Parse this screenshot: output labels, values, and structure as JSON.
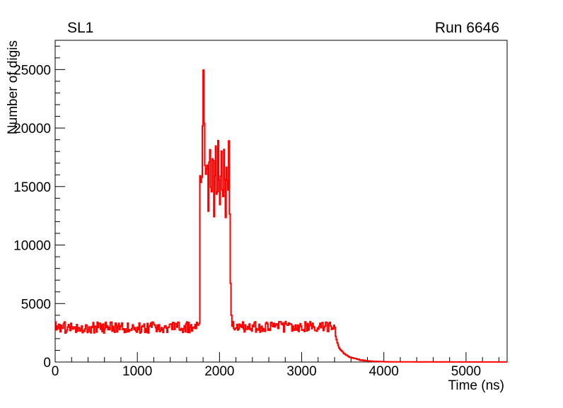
{
  "canvas": {
    "background": "#ffffff",
    "frame_color": "#000000"
  },
  "chart_data": {
    "type": "line",
    "title": "SL1",
    "corner_label": "Run 6646",
    "xlabel": "Time (ns)",
    "ylabel": "Number of digis",
    "xlim": [
      0,
      5500
    ],
    "ylim": [
      0,
      27500
    ],
    "grid": false,
    "legend": null,
    "line_color": "#ff0000",
    "line_width": 2,
    "x_major_ticks": [
      0,
      1000,
      2000,
      3000,
      4000,
      5000
    ],
    "x_tick_labels": [
      "0",
      "1000",
      "2000",
      "3000",
      "4000",
      "5000"
    ],
    "x_major_step": 1000,
    "x_minor_step": 200,
    "y_major_ticks": [
      0,
      5000,
      10000,
      15000,
      20000,
      25000
    ],
    "y_tick_labels": [
      "0",
      "5000",
      "10000",
      "15000",
      "20000",
      "25000"
    ],
    "y_major_step": 5000,
    "y_minor_step": 1000,
    "bin_width_ns": 10,
    "noise_seed": 6646,
    "segments": [
      {
        "kind": "noise",
        "t0": 0,
        "t1": 1750,
        "mean": 2950,
        "amplitude": 480
      },
      {
        "kind": "anchors",
        "jitter": 350,
        "points": [
          [
            1750,
            3400
          ],
          [
            1752,
            8000
          ],
          [
            1756,
            12600
          ],
          [
            1762,
            17600
          ],
          [
            1768,
            14000
          ],
          [
            1775,
            19000
          ],
          [
            1782,
            14800
          ],
          [
            1790,
            20500
          ],
          [
            1796,
            23300
          ],
          [
            1803,
            26400
          ],
          [
            1808,
            19000
          ],
          [
            1814,
            23600
          ],
          [
            1820,
            16800
          ],
          [
            1826,
            20300
          ],
          [
            1833,
            12600
          ],
          [
            1840,
            16800
          ],
          [
            1846,
            12900
          ],
          [
            1853,
            19700
          ],
          [
            1860,
            13100
          ],
          [
            1867,
            19900
          ],
          [
            1874,
            12700
          ],
          [
            1881,
            18700
          ],
          [
            1888,
            13600
          ],
          [
            1895,
            19400
          ],
          [
            1902,
            12400
          ],
          [
            1909,
            17700
          ],
          [
            1916,
            13900
          ],
          [
            1923,
            19900
          ],
          [
            1930,
            12500
          ],
          [
            1937,
            18200
          ],
          [
            1944,
            13000
          ],
          [
            1951,
            19000
          ],
          [
            1958,
            12900
          ],
          [
            1965,
            17200
          ],
          [
            1972,
            13700
          ],
          [
            1979,
            19800
          ],
          [
            1986,
            12400
          ],
          [
            1993,
            18500
          ],
          [
            2000,
            13300
          ],
          [
            2007,
            17900
          ],
          [
            2014,
            12700
          ],
          [
            2021,
            19200
          ],
          [
            2028,
            14000
          ],
          [
            2035,
            16600
          ],
          [
            2042,
            12900
          ],
          [
            2049,
            18800
          ],
          [
            2056,
            13400
          ],
          [
            2063,
            17500
          ],
          [
            2070,
            12600
          ],
          [
            2077,
            18900
          ],
          [
            2084,
            13800
          ],
          [
            2091,
            16200
          ],
          [
            2098,
            12900
          ],
          [
            2108,
            20700
          ],
          [
            2116,
            13800
          ],
          [
            2122,
            12100
          ],
          [
            2128,
            7800
          ],
          [
            2136,
            4300
          ],
          [
            2148,
            3500
          ]
        ]
      },
      {
        "kind": "noise",
        "t0": 2150,
        "t1": 3400,
        "mean": 3000,
        "amplitude": 460
      },
      {
        "kind": "anchors",
        "jitter": 40,
        "points": [
          [
            3400,
            2950
          ],
          [
            3410,
            2200
          ],
          [
            3425,
            1750
          ],
          [
            3445,
            1300
          ],
          [
            3470,
            1050
          ],
          [
            3500,
            800
          ],
          [
            3530,
            620
          ],
          [
            3570,
            460
          ],
          [
            3620,
            330
          ],
          [
            3670,
            240
          ],
          [
            3720,
            170
          ],
          [
            3780,
            110
          ],
          [
            3850,
            65
          ],
          [
            3950,
            35
          ],
          [
            4100,
            18
          ],
          [
            4400,
            10
          ],
          [
            5000,
            7
          ],
          [
            5500,
            6
          ]
        ]
      }
    ]
  }
}
